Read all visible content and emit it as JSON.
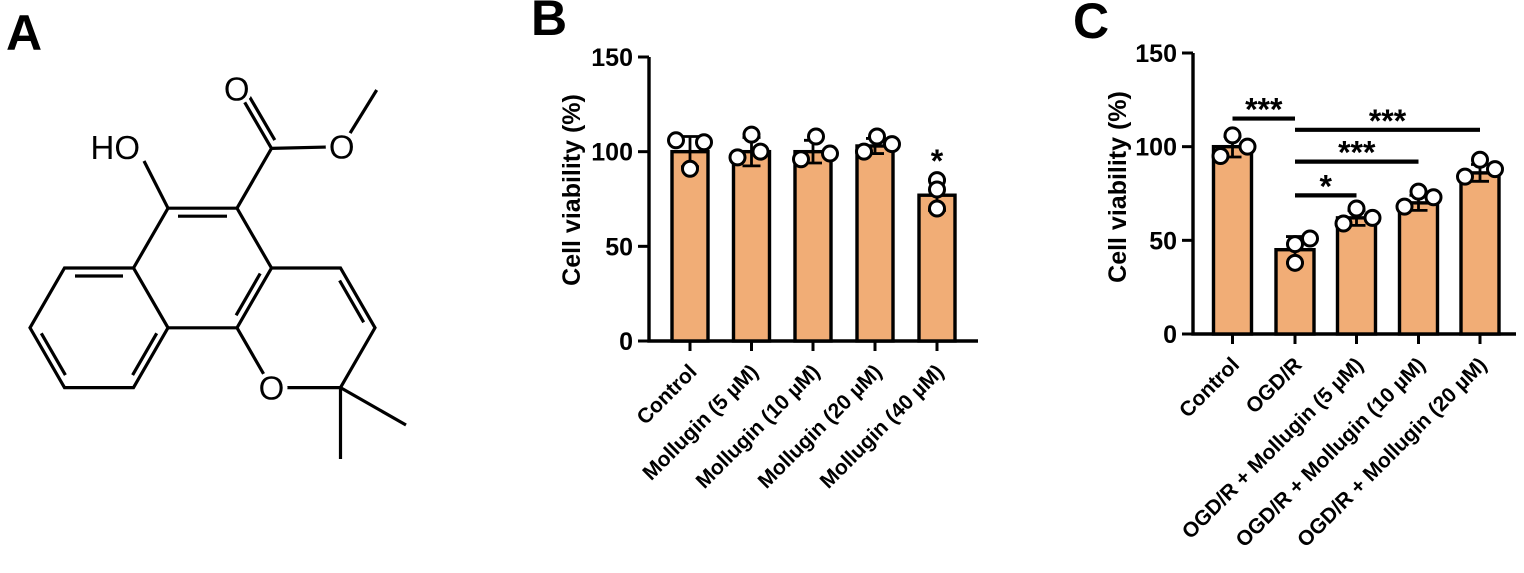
{
  "panels": {
    "a_label": "A",
    "b_label": "B",
    "c_label": "C"
  },
  "panel_a": {
    "compound": "Mollugin",
    "description": "chemical-structure",
    "atom_labels": {
      "hydroxyl": "HO",
      "carbonyl_oxygen": "O",
      "ester_oxygen": "O",
      "pyran_oxygen": "O"
    }
  },
  "chart_data": [
    {
      "id": "B",
      "type": "bar",
      "title": "",
      "ylabel": "Cell viability (%)",
      "xlabel": "",
      "ylim": [
        0,
        150
      ],
      "yticks": [
        0,
        50,
        100,
        150
      ],
      "grid": false,
      "bar_fill": "#F1AD76",
      "bar_stroke": "#000000",
      "categories": [
        "Control",
        "Mollugin (5 µM)",
        "Mollugin (10 µM)",
        "Mollugin (20 µM)",
        "Mollugin (40 µM)"
      ],
      "means": [
        100,
        100,
        100,
        103,
        77
      ],
      "sd": [
        8,
        7.5,
        6,
        4,
        8
      ],
      "points": [
        [
          {
            "v": 106,
            "dx": -14
          },
          {
            "v": 105,
            "dx": 14
          },
          {
            "v": 91,
            "dx": 0
          }
        ],
        [
          {
            "v": 109,
            "dx": 0
          },
          {
            "v": 97,
            "dx": -14
          },
          {
            "v": 100,
            "dx": 9
          }
        ],
        [
          {
            "v": 108,
            "dx": 3
          },
          {
            "v": 96,
            "dx": -12
          },
          {
            "v": 99,
            "dx": 17
          }
        ],
        [
          {
            "v": 108,
            "dx": 2
          },
          {
            "v": 104,
            "dx": 17
          },
          {
            "v": 100,
            "dx": -11
          }
        ],
        [
          {
            "v": 85,
            "dx": 0
          },
          {
            "v": 80,
            "dx": 0
          },
          {
            "v": 70,
            "dx": 0
          }
        ]
      ],
      "bar_annotations": [
        {
          "bar": 4,
          "label": "*"
        }
      ],
      "brackets": []
    },
    {
      "id": "C",
      "type": "bar",
      "title": "",
      "ylabel": "Cell viability (%)",
      "xlabel": "",
      "ylim": [
        0,
        150
      ],
      "yticks": [
        0,
        50,
        100,
        150
      ],
      "grid": false,
      "bar_fill": "#F1AD76",
      "bar_stroke": "#000000",
      "categories": [
        "Control",
        "OGD/R",
        "OGD/R + Mollugin (5 µM)",
        "OGD/R + Mollugin (10 µM)",
        "OGD/R + Mollugin (20 µM)"
      ],
      "means": [
        100,
        45,
        62,
        70,
        86
      ],
      "sd": [
        5.5,
        7,
        4,
        4,
        4.5
      ],
      "points": [
        [
          {
            "v": 106,
            "dx": 0
          },
          {
            "v": 100,
            "dx": 15
          },
          {
            "v": 95,
            "dx": -12
          }
        ],
        [
          {
            "v": 48,
            "dx": 0
          },
          {
            "v": 51,
            "dx": 15
          },
          {
            "v": 38,
            "dx": 0
          }
        ],
        [
          {
            "v": 59,
            "dx": -13
          },
          {
            "v": 67,
            "dx": 0
          },
          {
            "v": 62,
            "dx": 16
          }
        ],
        [
          {
            "v": 68,
            "dx": -14
          },
          {
            "v": 76,
            "dx": 0
          },
          {
            "v": 73,
            "dx": 15
          }
        ],
        [
          {
            "v": 84,
            "dx": -15
          },
          {
            "v": 93,
            "dx": 0
          },
          {
            "v": 88,
            "dx": 15
          }
        ]
      ],
      "bar_annotations": [],
      "brackets": [
        {
          "from": 0,
          "to": 1,
          "y": 115,
          "label": "***"
        },
        {
          "from": 1,
          "to": 4,
          "y": 109,
          "label": "***"
        },
        {
          "from": 1,
          "to": 3,
          "y": 92,
          "label": "***"
        },
        {
          "from": 1,
          "to": 2,
          "y": 74,
          "label": "*"
        }
      ]
    }
  ]
}
